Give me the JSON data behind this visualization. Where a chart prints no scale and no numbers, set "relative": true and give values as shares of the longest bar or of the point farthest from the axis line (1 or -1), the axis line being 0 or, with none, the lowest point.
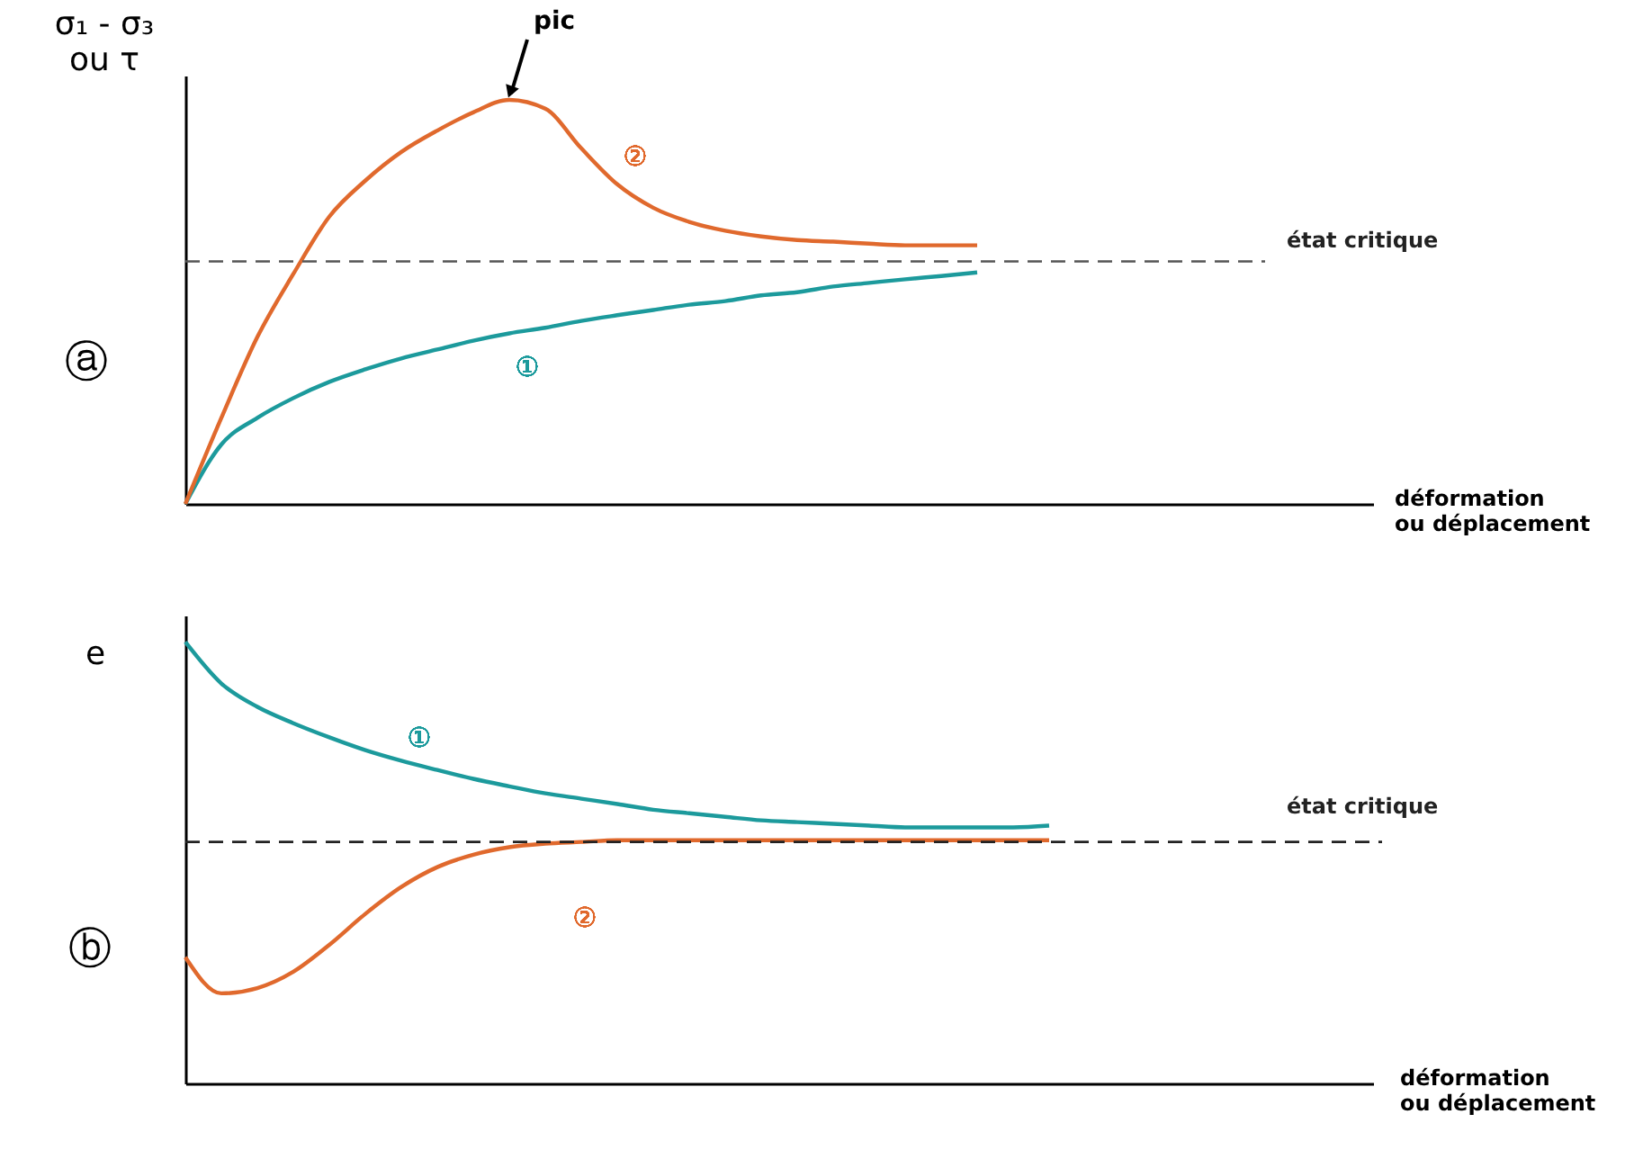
{
  "chart_data": [
    {
      "type": "line",
      "relative": true,
      "ylabel": "σ₁ - σ₃\nou τ",
      "xlabel": "déformation\nou déplacement",
      "categories": [
        null,
        null,
        null,
        null,
        null,
        null,
        null,
        null,
        null,
        null,
        null,
        null,
        null,
        null,
        null,
        null,
        null,
        null,
        null,
        null,
        null,
        null,
        null,
        null,
        null,
        null,
        null,
        null,
        null,
        null,
        null,
        null,
        null,
        null
      ],
      "series": [
        {
          "name": "①",
          "color": "#1c9a9c",
          "values": [
            0,
            0.147,
            0.213,
            0.262,
            0.302,
            0.333,
            0.36,
            0.382,
            0.404,
            0.422,
            0.436,
            0.453,
            0.467,
            0.48,
            0.493,
            0.502,
            0.516,
            0.524,
            0.538,
            0.547,
            0.556,
            0.564,
            0.573,
            null,
            null,
            null,
            null,
            null,
            null,
            null,
            null,
            null,
            null,
            null
          ]
        },
        {
          "name": "②",
          "color": "#e0692d",
          "values": [
            0,
            0.213,
            0.413,
            0.569,
            0.711,
            0.8,
            0.871,
            0.924,
            0.969,
            1,
            0.978,
            0.88,
            0.791,
            0.733,
            0.698,
            0.676,
            0.662,
            0.653,
            0.649,
            0.644,
            0.64,
            0.64,
            0.64,
            null,
            null,
            null,
            null,
            null,
            null,
            null,
            null,
            null,
            null,
            null
          ]
        }
      ],
      "ref_lines": [
        {
          "axis": "y",
          "value": 0.6,
          "label": "état critique",
          "color": "#555555",
          "line_style": "dashed"
        }
      ],
      "annotations": [
        "ⓐ",
        "pic"
      ]
    },
    {
      "type": "line",
      "relative": true,
      "ylabel": "e",
      "xlabel": "déformation\nou déplacement",
      "categories": [
        null,
        null,
        null,
        null,
        null,
        null,
        null,
        null,
        null,
        null,
        null,
        null,
        null,
        null,
        null,
        null,
        null,
        null,
        null,
        null,
        null,
        null,
        null,
        null,
        null,
        null,
        null,
        null,
        null,
        null,
        null,
        null,
        null,
        null
      ],
      "series": [
        {
          "name": "①",
          "color": "#1c9a9c",
          "values": [
            1,
            0.906,
            0.853,
            0.816,
            0.784,
            0.755,
            0.731,
            0.71,
            0.69,
            0.673,
            0.657,
            0.645,
            0.633,
            0.62,
            0.612,
            0.604,
            0.596,
            0.592,
            0.588,
            0.584,
            0.58,
            0.58,
            0.58,
            0.58,
            0.584,
            null,
            null,
            null,
            null,
            null,
            null,
            null,
            null,
            null
          ]
        },
        {
          "name": "②",
          "color": "#e0692d",
          "values": [
            0.286,
            0.204,
            0.216,
            0.253,
            0.314,
            0.384,
            0.445,
            0.49,
            0.518,
            0.535,
            0.543,
            0.547,
            0.551,
            0.551,
            0.551,
            0.551,
            0.551,
            0.551,
            0.551,
            0.551,
            0.551,
            0.551,
            0.551,
            0.551,
            0.551,
            null,
            null,
            null,
            null,
            null,
            null,
            null,
            null,
            null
          ]
        }
      ],
      "ref_lines": [
        {
          "axis": "y",
          "value": 0.547,
          "label": "état critique",
          "color": "#222222",
          "line_style": "dashed"
        }
      ],
      "annotations": [
        "ⓑ"
      ]
    }
  ]
}
